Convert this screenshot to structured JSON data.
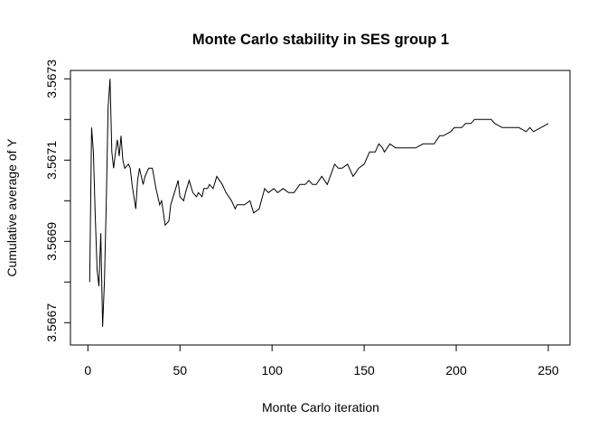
{
  "chart_data": {
    "type": "line",
    "title": "Monte Carlo stability in SES group 1",
    "xlabel": "Monte Carlo iteration",
    "ylabel": "Cumulative average of Y",
    "xlim": [
      0,
      250
    ],
    "ylim": [
      3.56665,
      3.56734
    ],
    "x_ticks": [
      "0",
      "50",
      "100",
      "150",
      "200",
      "250"
    ],
    "y_tick_values": [
      3.5667,
      3.5668,
      3.5669,
      3.567,
      3.5671,
      3.5672,
      3.5673
    ],
    "y_tick_labels": [
      "3.5667",
      "3.5669",
      "3.5671",
      "3.5673"
    ],
    "grid": false,
    "color": "#000000",
    "series": [
      {
        "x": [
          1,
          2,
          3,
          4,
          5,
          6,
          7,
          8,
          9,
          10,
          11,
          12,
          13,
          14,
          15,
          16,
          17,
          18,
          19,
          20,
          22,
          23,
          24,
          26,
          27,
          28,
          30,
          31,
          33,
          35,
          37,
          39,
          40,
          42,
          44,
          45,
          47,
          49,
          50,
          52,
          53,
          55,
          57,
          59,
          60,
          62,
          63,
          65,
          66,
          68,
          70,
          73,
          75,
          78,
          80,
          81,
          83,
          85,
          88,
          90,
          93,
          96,
          98,
          101,
          103,
          106,
          109,
          112,
          115,
          118,
          120,
          122,
          124,
          127,
          130,
          134,
          136,
          138,
          141,
          144,
          147,
          150,
          153,
          156,
          158,
          160,
          161,
          164,
          167,
          170,
          175,
          178,
          182,
          185,
          188,
          191,
          193,
          197,
          199,
          203,
          205,
          208,
          210,
          212,
          215,
          217,
          219,
          221,
          225,
          229,
          232,
          234,
          238,
          240,
          242,
          246,
          250
        ],
        "y": [
          3.5668,
          3.56718,
          3.56712,
          3.56696,
          3.56683,
          3.56679,
          3.56692,
          3.56669,
          3.5668,
          3.567,
          3.56723,
          3.5673,
          3.56712,
          3.56708,
          3.56712,
          3.56715,
          3.56711,
          3.56716,
          3.5671,
          3.56708,
          3.56709,
          3.56708,
          3.56704,
          3.56698,
          3.56705,
          3.56708,
          3.56704,
          3.56706,
          3.56708,
          3.56708,
          3.56703,
          3.56699,
          3.567,
          3.56694,
          3.56695,
          3.56699,
          3.56702,
          3.56705,
          3.56701,
          3.567,
          3.56702,
          3.56705,
          3.56702,
          3.56701,
          3.56702,
          3.56701,
          3.56703,
          3.56703,
          3.56704,
          3.56703,
          3.56706,
          3.56704,
          3.56702,
          3.567,
          3.56698,
          3.56699,
          3.56699,
          3.56699,
          3.567,
          3.56697,
          3.56698,
          3.56703,
          3.56702,
          3.56703,
          3.56702,
          3.56703,
          3.56702,
          3.56702,
          3.56704,
          3.56704,
          3.56705,
          3.56704,
          3.56704,
          3.56706,
          3.56704,
          3.56709,
          3.56708,
          3.56708,
          3.56709,
          3.56706,
          3.56708,
          3.56709,
          3.56712,
          3.56712,
          3.56714,
          3.56713,
          3.56712,
          3.56714,
          3.56713,
          3.56713,
          3.56713,
          3.56713,
          3.56714,
          3.56714,
          3.56714,
          3.56716,
          3.56716,
          3.56717,
          3.56718,
          3.56718,
          3.56719,
          3.56719,
          3.5672,
          3.5672,
          3.5672,
          3.5672,
          3.5672,
          3.56719,
          3.56718,
          3.56718,
          3.56718,
          3.56718,
          3.56717,
          3.56718,
          3.56717,
          3.56718,
          3.56719
        ]
      }
    ]
  }
}
